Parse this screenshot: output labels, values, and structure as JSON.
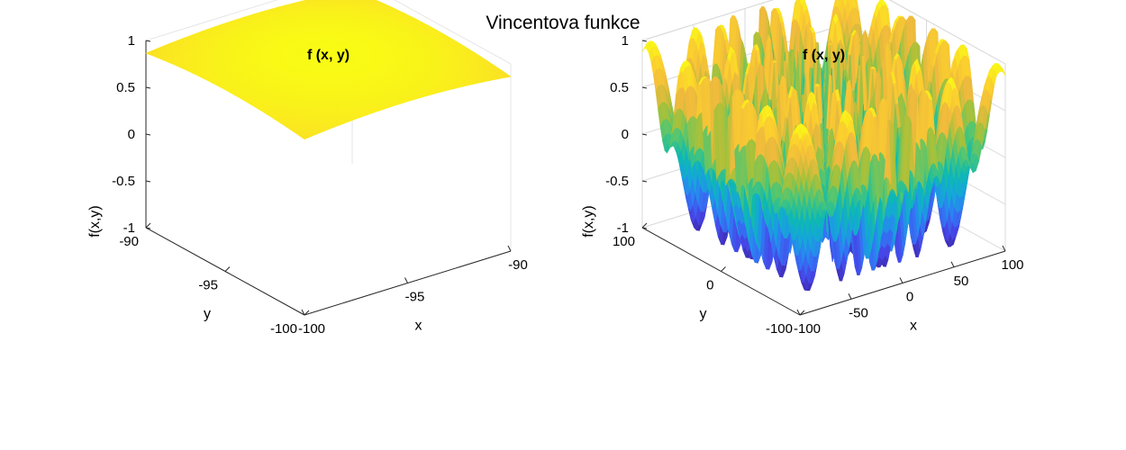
{
  "suptitle": "Vincentova funkce",
  "colormap": [
    "#3e26a8",
    "#4648e8",
    "#2f7df6",
    "#15a7d8",
    "#0eb9b1",
    "#4dc675",
    "#a9c13a",
    "#f0ba3d",
    "#fbd02e",
    "#f9fb15"
  ],
  "chart_data": [
    {
      "type": "surface",
      "title": "f (x, y)",
      "function": "sin(10*log(x)) + sin(10*log(y)), scaled to [-1, 1]",
      "xlabel": "x",
      "ylabel": "y",
      "zlabel": "f(x,y)",
      "xlim": [
        -100,
        -90
      ],
      "ylim": [
        -100,
        -90
      ],
      "zlim": [
        -1,
        1
      ],
      "xticks": [
        -100,
        -95,
        -90
      ],
      "yticks": [
        -100,
        -95,
        -90
      ],
      "zticks": [
        -1,
        -0.5,
        0,
        0.5,
        1
      ],
      "grid": false
    },
    {
      "type": "surface",
      "title": "f (x, y)",
      "function": "sin(10*log(x)) + sin(10*log(y)), scaled to [-1, 1]",
      "xlabel": "x",
      "ylabel": "y",
      "zlabel": "f(x,y)",
      "xlim": [
        -100,
        100
      ],
      "ylim": [
        -100,
        100
      ],
      "zlim": [
        -1,
        1
      ],
      "xticks": [
        -100,
        -50,
        0,
        50,
        100
      ],
      "yticks": [
        -100,
        0,
        100
      ],
      "zticks": [
        -1,
        -0.5,
        0,
        0.5,
        1
      ],
      "grid": true
    }
  ]
}
